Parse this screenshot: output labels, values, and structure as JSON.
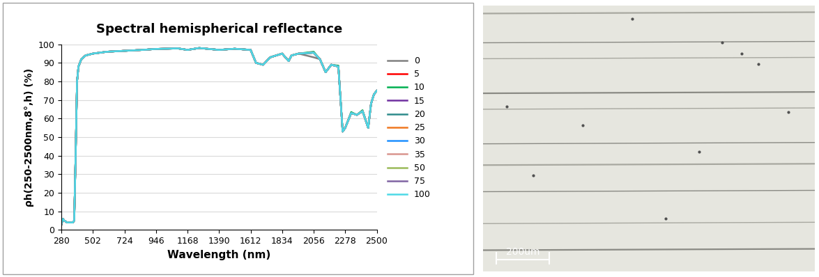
{
  "chart_data": {
    "type": "line",
    "title": "Spectral hemispherical reflectance",
    "x_label": "Wavelength (nm)",
    "y_label": "ρh(250-2500nm,8°,h) (%)",
    "x": [
      280,
      290,
      300,
      320,
      340,
      360,
      370,
      380,
      390,
      400,
      420,
      450,
      502,
      600,
      724,
      850,
      946,
      1100,
      1168,
      1250,
      1390,
      1500,
      1612,
      1650,
      1700,
      1750,
      1834,
      1880,
      1900,
      1950,
      2056,
      2100,
      2140,
      2180,
      2230,
      2260,
      2278,
      2320,
      2360,
      2400,
      2440,
      2460,
      2480,
      2500
    ],
    "xlim": [
      280,
      2500
    ],
    "xticks": [
      280,
      502,
      724,
      946,
      1168,
      1390,
      1612,
      1834,
      2056,
      2278,
      2500
    ],
    "ylim": [
      0,
      100
    ],
    "yticks": [
      0,
      10,
      20,
      30,
      40,
      50,
      60,
      70,
      80,
      90,
      100
    ],
    "grid": true,
    "legend": "right",
    "series": [
      {
        "name": "0",
        "color": "#808080",
        "values": [
          3,
          6,
          5,
          4,
          4,
          4,
          5,
          40,
          80,
          88,
          92,
          94,
          95,
          96,
          96.5,
          97,
          97.5,
          97.8,
          97,
          98,
          97,
          97.6,
          97,
          90,
          89,
          93,
          95,
          91,
          94,
          95,
          93,
          92,
          85,
          89,
          88,
          53,
          55,
          63,
          62,
          64,
          55,
          68,
          73,
          75
        ]
      },
      {
        "name": "5",
        "color": "#ff0000",
        "values": [
          3,
          6,
          5,
          4,
          4,
          4,
          5,
          40,
          80,
          88,
          92,
          94,
          95,
          96,
          96.5,
          97,
          97.5,
          97.8,
          97,
          98,
          97,
          97.6,
          97,
          90,
          89,
          93,
          95,
          91,
          94,
          95,
          95.5,
          92,
          85,
          89,
          88,
          53,
          55,
          63,
          62,
          64,
          55,
          68,
          73,
          75
        ]
      },
      {
        "name": "10",
        "color": "#00b050",
        "values": [
          3,
          6,
          5,
          4,
          4,
          4,
          5,
          40,
          80,
          88,
          92,
          94,
          95,
          96,
          96.5,
          97,
          97.5,
          97.8,
          97,
          98,
          97,
          97.6,
          97,
          90,
          89,
          93,
          95,
          91,
          94,
          95,
          96,
          92,
          85,
          89,
          88.5,
          53,
          55,
          63.5,
          62,
          64.5,
          55,
          68,
          73,
          75
        ]
      },
      {
        "name": "15",
        "color": "#7030a0",
        "values": [
          3,
          6,
          5,
          4,
          4,
          4,
          5,
          40,
          80,
          88,
          92,
          94,
          95,
          96,
          96.5,
          97,
          97.5,
          97.8,
          97,
          98,
          97,
          97.6,
          97,
          90,
          89,
          93,
          95,
          91,
          94,
          95,
          95.5,
          92,
          85,
          89,
          88,
          53,
          55,
          63,
          62,
          64,
          55,
          68,
          73,
          75
        ]
      },
      {
        "name": "20",
        "color": "#2e8b8b",
        "values": [
          3,
          6,
          5,
          4,
          4,
          4,
          5,
          40,
          80,
          88,
          92,
          94,
          95,
          96,
          96.5,
          97,
          97.5,
          97.8,
          97,
          98,
          97,
          97.6,
          97,
          90,
          89,
          93,
          95,
          91,
          94,
          95,
          95.5,
          92,
          85,
          89,
          88,
          53,
          55,
          63,
          62,
          64,
          55,
          68,
          73,
          75
        ]
      },
      {
        "name": "25",
        "color": "#f07820",
        "values": [
          3,
          6,
          5,
          4,
          4,
          4,
          5,
          40,
          80,
          88,
          92,
          94,
          95,
          96,
          96.5,
          97,
          97.5,
          97.8,
          97,
          98,
          97,
          97.6,
          97,
          90,
          89,
          93,
          95,
          91,
          94,
          95,
          95.5,
          92,
          85,
          89,
          88,
          53,
          55,
          63,
          62,
          64,
          55,
          68,
          73,
          75
        ]
      },
      {
        "name": "30",
        "color": "#1e90ff",
        "values": [
          3,
          6,
          5,
          4,
          4,
          4,
          5,
          40,
          80,
          88,
          92,
          94,
          95,
          96,
          96.5,
          97,
          97.5,
          97.8,
          97,
          98,
          97,
          97.6,
          97,
          90,
          89,
          93,
          95,
          91,
          94,
          95,
          95.5,
          92,
          85,
          89,
          88,
          53,
          55,
          63,
          62,
          64,
          55,
          68,
          73,
          75
        ]
      },
      {
        "name": "35",
        "color": "#d9958f",
        "values": [
          3,
          6,
          5,
          4,
          4,
          4,
          5,
          40,
          80,
          88,
          92,
          94,
          95,
          96,
          96.5,
          97,
          97.5,
          97.8,
          97,
          98,
          97,
          97.6,
          97,
          90,
          89,
          93,
          95,
          91,
          94,
          95,
          95.5,
          92,
          85,
          89,
          88,
          53,
          55,
          63,
          62,
          64,
          55,
          68,
          73,
          75
        ]
      },
      {
        "name": "50",
        "color": "#9bbb59",
        "values": [
          3,
          6,
          5,
          4,
          4,
          4,
          5,
          40,
          80,
          88,
          92,
          94,
          95,
          96,
          96.5,
          97,
          97.5,
          97.8,
          97,
          98,
          97,
          97.6,
          97,
          90,
          89,
          93,
          95,
          91,
          94,
          95,
          95.5,
          92,
          85,
          89,
          88,
          53,
          55,
          63,
          62,
          64,
          55,
          68,
          73,
          75
        ]
      },
      {
        "name": "75",
        "color": "#8064a2",
        "values": [
          3,
          6,
          5,
          4,
          4,
          4,
          5,
          40,
          80,
          88,
          92,
          94,
          95,
          96,
          96.5,
          97,
          97.5,
          97.8,
          97,
          98,
          97,
          97.6,
          97,
          90,
          89,
          93,
          95,
          91,
          94,
          95,
          95.5,
          92,
          85,
          89,
          88,
          53,
          55,
          63,
          62,
          64,
          55,
          68,
          73,
          75
        ]
      },
      {
        "name": "100",
        "color": "#4dd9e6",
        "values": [
          3,
          6,
          5,
          4,
          4,
          4,
          5,
          40,
          80,
          88,
          92,
          94,
          95,
          96,
          96.5,
          97,
          97.5,
          97.8,
          97,
          98,
          97,
          97.6,
          97,
          90,
          89,
          93,
          95,
          91,
          94,
          95,
          95.5,
          92,
          85,
          89,
          88,
          53,
          55,
          63,
          62,
          64,
          55,
          68,
          73,
          75
        ]
      }
    ]
  },
  "micrograph": {
    "scale_bar": "200um"
  }
}
